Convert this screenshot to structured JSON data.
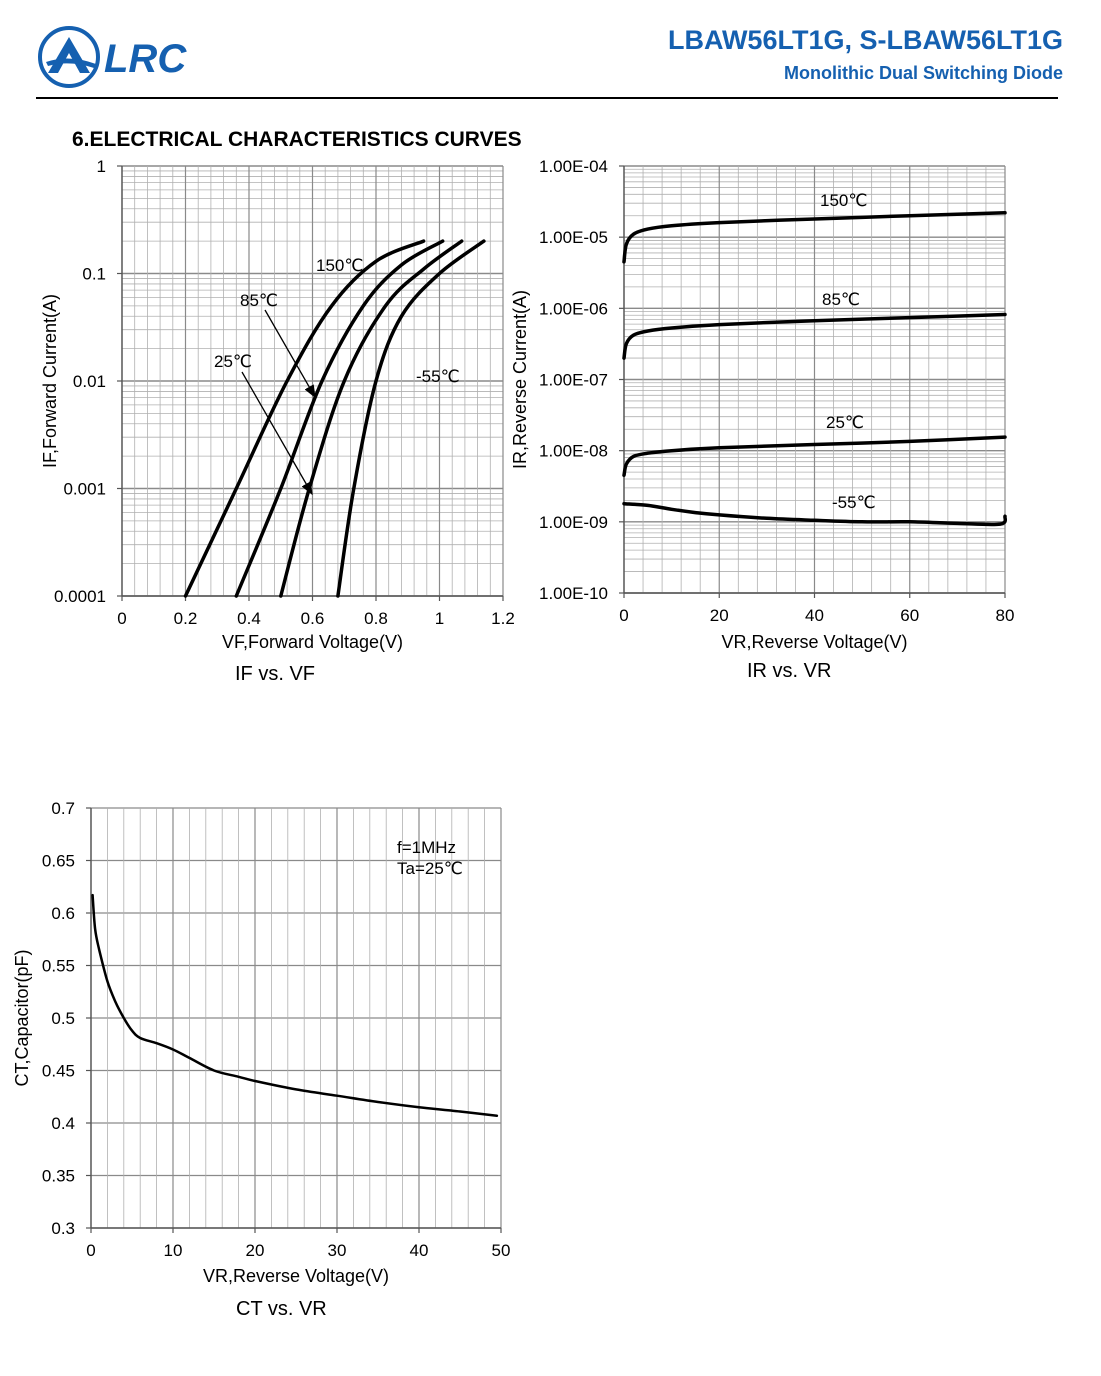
{
  "header": {
    "logo_text": "LRC",
    "title": "LBAW56LT1G, S-LBAW56LT1G",
    "subtitle": "Monolithic Dual Switching Diode"
  },
  "section_title": "6.ELECTRICAL CHARACTERISTICS CURVES",
  "colors": {
    "brand": "#1560b0",
    "grid": "#b0b0b0",
    "curve": "#000000"
  },
  "chart_data": [
    {
      "id": "if_vf",
      "type": "line",
      "caption": "IF vs. VF",
      "xlabel": "VF,Forward Voltage(V)",
      "ylabel": "IF,Forward Current(A)",
      "xlim": [
        0,
        1.2
      ],
      "ylim": [
        0.0001,
        1
      ],
      "yscale": "log",
      "grid": true,
      "x_ticks": [
        "0",
        "0.2",
        "0.4",
        "0.6",
        "0.8",
        "1",
        "1.2"
      ],
      "y_ticks": [
        "1",
        "0.1",
        "0.01",
        "0.001",
        "0.0001"
      ],
      "series": [
        {
          "name": "150℃",
          "x": [
            0.2,
            0.36,
            0.52,
            0.66,
            0.8,
            0.95
          ],
          "y": [
            0.0001,
            0.001,
            0.01,
            0.05,
            0.13,
            0.2
          ]
        },
        {
          "name": "85℃",
          "x": [
            0.36,
            0.5,
            0.63,
            0.76,
            0.88,
            1.01
          ],
          "y": [
            0.0001,
            0.001,
            0.01,
            0.05,
            0.12,
            0.2
          ]
        },
        {
          "name": "25℃",
          "x": [
            0.5,
            0.59,
            0.7,
            0.83,
            0.95,
            1.07
          ],
          "y": [
            0.0001,
            0.001,
            0.01,
            0.05,
            0.11,
            0.2
          ]
        },
        {
          "name": "-55℃",
          "x": [
            0.68,
            0.73,
            0.8,
            0.88,
            1.0,
            1.14
          ],
          "y": [
            0.0001,
            0.001,
            0.01,
            0.04,
            0.1,
            0.2
          ]
        }
      ],
      "annotations": [
        "150℃",
        "85℃",
        "25℃",
        "-55℃"
      ]
    },
    {
      "id": "ir_vr",
      "type": "line",
      "caption": "IR vs. VR",
      "xlabel": "VR,Reverse Voltage(V)",
      "ylabel": "IR,Reverse Current(A)",
      "xlim": [
        0,
        80
      ],
      "ylim": [
        1e-10,
        0.0001
      ],
      "yscale": "log",
      "grid": true,
      "x_ticks": [
        "0",
        "20",
        "40",
        "60",
        "80"
      ],
      "y_ticks": [
        "1.00E-04",
        "1.00E-05",
        "1.00E-06",
        "1.00E-07",
        "1.00E-08",
        "1.00E-09",
        "1.00E-10"
      ],
      "series": [
        {
          "name": "150℃",
          "x": [
            0,
            0.5,
            2,
            5,
            10,
            20,
            40,
            60,
            80
          ],
          "y": [
            4.5e-06,
            8e-06,
            1.1e-05,
            1.3e-05,
            1.45e-05,
            1.6e-05,
            1.8e-05,
            2e-05,
            2.2e-05
          ]
        },
        {
          "name": "85℃",
          "x": [
            0,
            0.5,
            2,
            5,
            10,
            20,
            40,
            60,
            80
          ],
          "y": [
            2e-07,
            3.2e-07,
            4.2e-07,
            4.8e-07,
            5.3e-07,
            5.9e-07,
            6.7e-07,
            7.4e-07,
            8.2e-07
          ]
        },
        {
          "name": "25℃",
          "x": [
            0,
            0.5,
            2,
            5,
            10,
            20,
            40,
            60,
            80
          ],
          "y": [
            4.5e-09,
            6.5e-09,
            8.3e-09,
            9.2e-09,
            1e-08,
            1.1e-08,
            1.22e-08,
            1.35e-08,
            1.55e-08
          ]
        },
        {
          "name": "-55℃",
          "x": [
            0,
            5,
            10,
            15,
            20,
            30,
            40,
            50,
            60,
            70,
            79,
            80
          ],
          "y": [
            1.8e-09,
            1.7e-09,
            1.5e-09,
            1.35e-09,
            1.25e-09,
            1.12e-09,
            1.05e-09,
            1e-09,
            1e-09,
            9.5e-10,
            9.3e-10,
            1.2e-09
          ]
        }
      ],
      "annotations": [
        "150℃",
        "85℃",
        "25℃",
        "-55℃"
      ]
    },
    {
      "id": "ct_vr",
      "type": "line",
      "caption": "CT vs. VR",
      "xlabel": "VR,Reverse Voltage(V)",
      "ylabel": "CT,Capacitor(pF)",
      "xlim": [
        0,
        50
      ],
      "ylim": [
        0.3,
        0.7
      ],
      "grid": true,
      "x_ticks": [
        "0",
        "10",
        "20",
        "30",
        "40",
        "50"
      ],
      "y_ticks": [
        "0.7",
        "0.65",
        "0.6",
        "0.55",
        "0.5",
        "0.45",
        "0.4",
        "0.35",
        "0.3"
      ],
      "series": [
        {
          "name": "CT",
          "x": [
            0.2,
            0.5,
            1,
            2,
            3,
            4,
            5,
            6,
            8,
            10,
            12,
            15,
            18,
            20,
            25,
            30,
            35,
            40,
            45,
            49.5
          ],
          "y": [
            0.617,
            0.585,
            0.565,
            0.535,
            0.515,
            0.5,
            0.488,
            0.481,
            0.476,
            0.47,
            0.462,
            0.45,
            0.444,
            0.44,
            0.432,
            0.426,
            0.42,
            0.415,
            0.411,
            0.407
          ]
        }
      ],
      "annotations": [
        "f=1MHz",
        "Ta=25℃"
      ]
    }
  ]
}
